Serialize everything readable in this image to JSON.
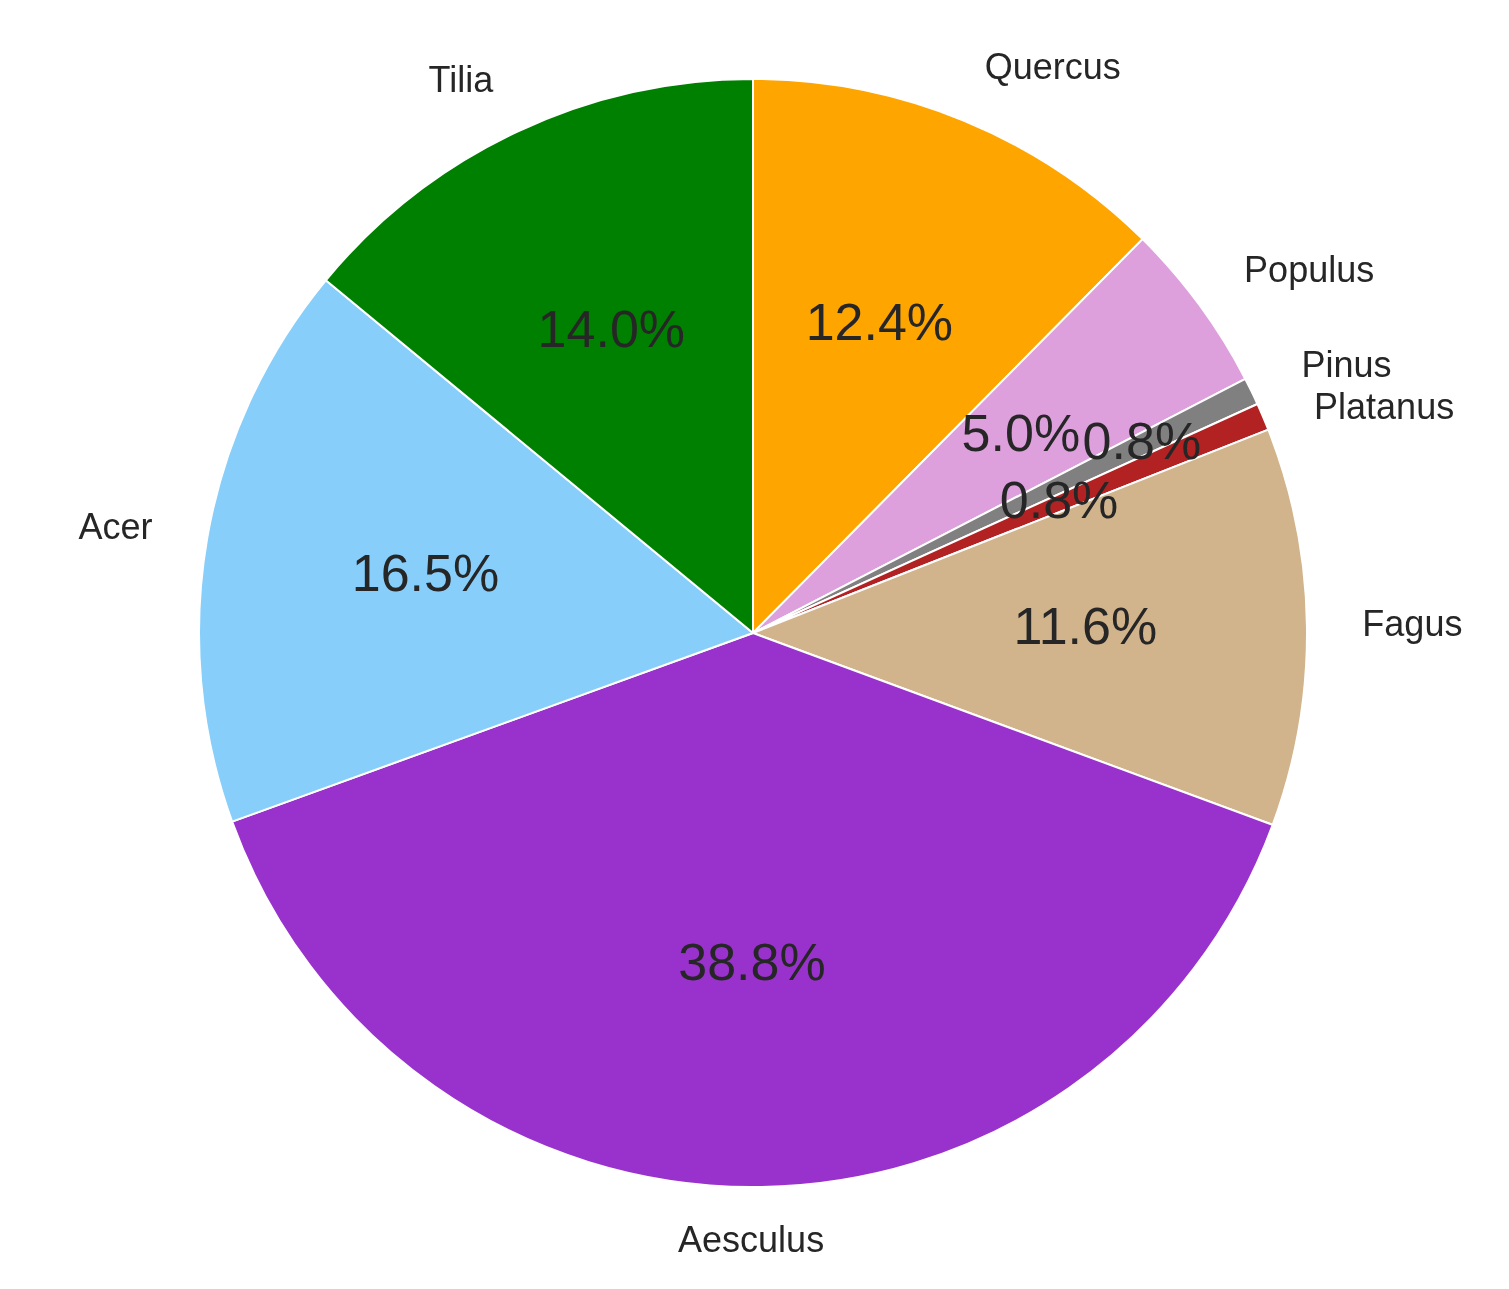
{
  "chart_data": {
    "type": "pie",
    "categories": [
      "Quercus",
      "Populus",
      "Pinus",
      "Platanus",
      "Fagus",
      "Aesculus",
      "Acer",
      "Tilia"
    ],
    "values": [
      12.4,
      5.0,
      0.8,
      0.8,
      11.6,
      38.8,
      16.5,
      14.0
    ],
    "value_labels": [
      "12.4%",
      "5.0%",
      "0.8%",
      "0.8%",
      "11.6%",
      "38.8%",
      "16.5%",
      "14.0%"
    ],
    "colors": [
      "#ffa500",
      "#dda0dd",
      "#808080",
      "#b22222",
      "#d2b48c",
      "#9932cc",
      "#87cefa",
      "#008000"
    ],
    "legend": false
  }
}
